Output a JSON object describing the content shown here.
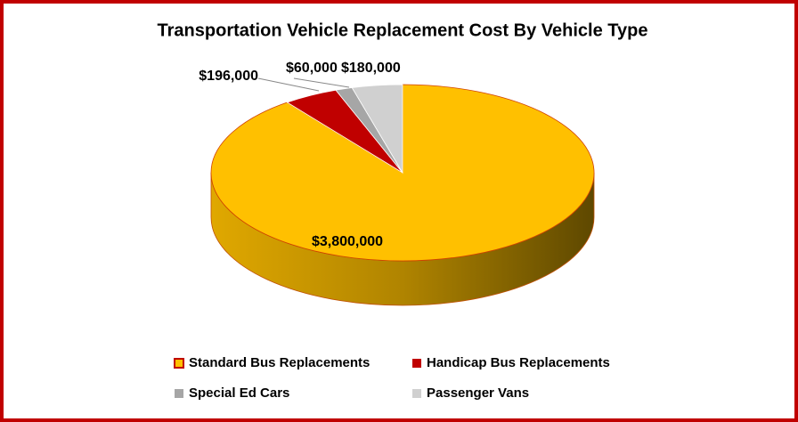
{
  "chart_data": {
    "type": "pie",
    "title": "Transportation Vehicle Replacement Cost By Vehicle Type",
    "categories": [
      "Standard Bus Replacements",
      "Handicap Bus Replacements",
      "Special Ed Cars",
      "Passenger Vans"
    ],
    "values": [
      3800000,
      196000,
      60000,
      180000
    ],
    "value_labels": [
      "$3,800,000",
      "$196,000",
      "$60,000",
      "$180,000"
    ],
    "colors": [
      "#ffc000",
      "#c00000",
      "#a6a6a6",
      "#d0d0d0"
    ],
    "legend": "bottom"
  }
}
